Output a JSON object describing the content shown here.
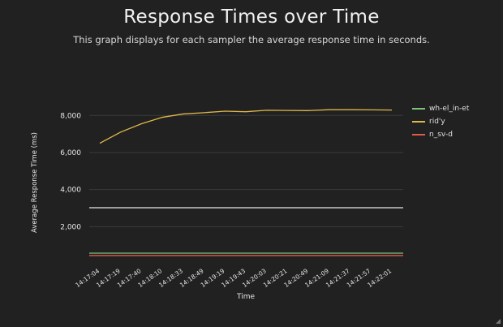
{
  "page": {
    "title": "Response Times over Time",
    "subtitle": "This graph displays for each sampler the average response time in seconds."
  },
  "chart_data": {
    "type": "line",
    "title": "Response Times over Time",
    "subtitle": "This graph displays for each sampler the average response time in seconds.",
    "xlabel": "Time",
    "ylabel": "Average Response Time (ms)",
    "ylim": [
      0,
      9500
    ],
    "yticks": [
      2000,
      4000,
      6000,
      8000
    ],
    "ytick_labels": [
      "2,000",
      "4,000",
      "6,000",
      "8,000"
    ],
    "categories": [
      "14:17:04",
      "14:17:19",
      "14:17:40",
      "14:18:10",
      "14:18:33",
      "14:18:49",
      "14:19:19",
      "14:19:43",
      "14:20:03",
      "14:20:21",
      "14:20:49",
      "14:21:09",
      "14:21:37",
      "14:21:57",
      "14:22:01"
    ],
    "grid": true,
    "legend_position": "right",
    "series": [
      {
        "name": "wh-el_in-et",
        "color": "#7cc47a",
        "values": [
          570,
          570,
          570,
          570,
          570,
          570,
          570,
          570,
          570,
          570,
          570,
          570,
          570,
          570,
          570
        ]
      },
      {
        "name": "rid'y",
        "color": "#e0b84a",
        "values": [
          6500,
          7100,
          7550,
          7900,
          8080,
          8150,
          8230,
          8200,
          8280,
          8270,
          8260,
          8310,
          8310,
          8300,
          8290
        ]
      },
      {
        "name": "n_sv-d",
        "color": "#e05a4a",
        "values": [
          440,
          440,
          440,
          440,
          440,
          440,
          440,
          440,
          440,
          440,
          440,
          440,
          440,
          440,
          440
        ]
      }
    ],
    "reference_line": {
      "value": 3020,
      "color": "#e8e8e8"
    }
  }
}
